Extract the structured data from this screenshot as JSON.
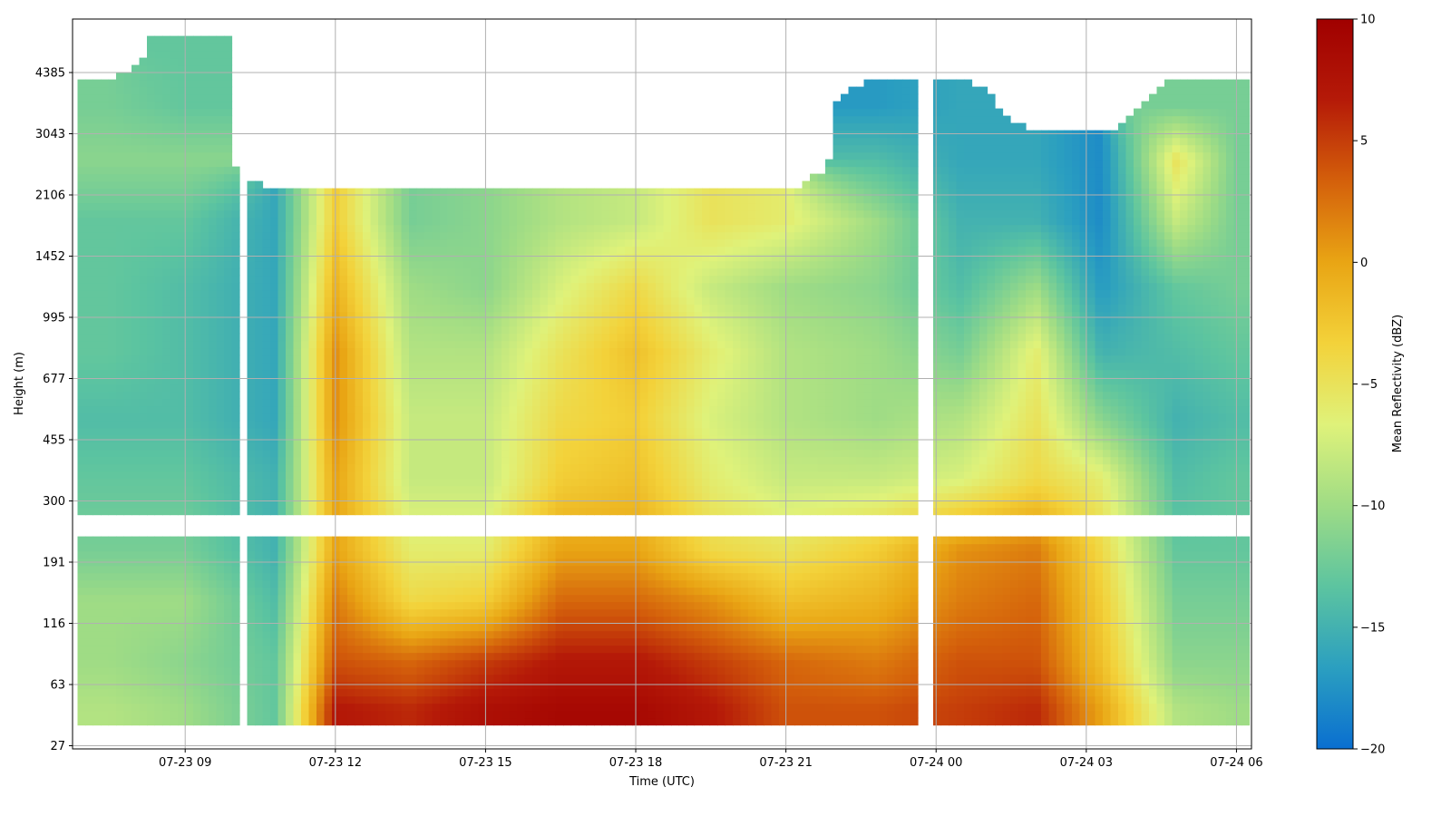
{
  "chart_data": {
    "type": "heatmap",
    "title": "",
    "xlabel": "Time (UTC)",
    "ylabel": "Height (m)",
    "x_ticks": [
      "07-23 09",
      "07-23 12",
      "07-23 15",
      "07-23 18",
      "07-23 21",
      "07-24 00",
      "07-24 03",
      "07-24 06"
    ],
    "x_tick_hours": [
      9,
      12,
      15,
      18,
      21,
      24,
      27,
      30
    ],
    "xlim_hours": [
      6.75,
      30.3
    ],
    "y_ticks": [
      "27",
      "63",
      "116",
      "191",
      "300",
      "455",
      "677",
      "995",
      "1452",
      "2106",
      "3043",
      "4385"
    ],
    "colorbar": {
      "label": "Mean Reflectivity (dBZ)",
      "range": [
        -20,
        10
      ],
      "ticks": [
        "10",
        "5",
        "0",
        "−5",
        "−10",
        "−15",
        "−20"
      ],
      "tick_values": [
        10,
        5,
        0,
        -5,
        -10,
        -15,
        -20
      ],
      "colormap": [
        "#0a6fd0",
        "#2b9fc0",
        "#5cc4a0",
        "#9fdc85",
        "#dff27a",
        "#f3d23a",
        "#e9a514",
        "#d4600b",
        "#b51a08",
        "#a00000"
      ]
    },
    "grid": true,
    "gaps": {
      "height_range_m": [
        232,
        270
      ],
      "time_hours": [
        [
          10.05,
          10.3
        ],
        [
          23.6,
          23.9
        ]
      ]
    },
    "approx_reflectivity_dbz": {
      "row_heights_m": [
        45,
        80,
        140,
        210,
        350,
        520,
        800,
        1200,
        1800,
        2600,
        3600,
        5000
      ],
      "col_hours": [
        7.5,
        9,
        10.8,
        12,
        13.5,
        15,
        16.5,
        18,
        19.5,
        21,
        22.8,
        24.5,
        26,
        27.3,
        28.8,
        30
      ],
      "values": [
        [
          -9,
          -10,
          -13,
          7,
          6,
          8,
          9,
          9,
          7,
          4,
          4,
          5,
          6,
          0,
          -9,
          -10
        ],
        [
          -10,
          -11,
          -13,
          4,
          3,
          5,
          7,
          7,
          5,
          3,
          2,
          4,
          4,
          -2,
          -11,
          -11
        ],
        [
          -10,
          -10,
          -14,
          2,
          -4,
          -3,
          3,
          3,
          1,
          -2,
          -1,
          2,
          3,
          -3,
          -12,
          -12
        ],
        [
          -12,
          -12,
          -15,
          0,
          -6,
          -6,
          0,
          0,
          -4,
          -5,
          -3,
          1,
          2,
          -4,
          -13,
          -13
        ],
        [
          -13,
          -13,
          -15,
          0,
          -8,
          -8,
          -3,
          -2,
          -6,
          -8,
          -8,
          -7,
          -4,
          -6,
          -14,
          -13
        ],
        [
          -14,
          -14,
          -16,
          1,
          -8,
          -8,
          -4,
          -3,
          -7,
          -9,
          -10,
          -9,
          -5,
          -11,
          -15,
          -14
        ],
        [
          -13,
          -14,
          -16,
          1,
          -9,
          -9,
          -5,
          -2,
          -6,
          -9,
          -10,
          -12,
          -6,
          -15,
          -14,
          -13
        ],
        [
          -13,
          -14,
          -16,
          -1,
          -10,
          -11,
          -7,
          -4,
          -8,
          -10,
          -11,
          -14,
          -10,
          -17,
          -13,
          -12
        ],
        [
          -13,
          -13,
          -16,
          -3,
          -12,
          -11,
          -9,
          -8,
          -5,
          -6,
          -10,
          -15,
          -15,
          -18,
          -8,
          -12
        ],
        [
          -11,
          -11,
          null,
          null,
          null,
          null,
          null,
          null,
          null,
          null,
          -14,
          -16,
          -16,
          -18,
          -5,
          -12
        ],
        [
          -12,
          -13,
          null,
          null,
          null,
          null,
          null,
          null,
          null,
          null,
          -17,
          -16,
          null,
          null,
          -12,
          -12
        ],
        [
          null,
          -13,
          null,
          null,
          null,
          null,
          null,
          null,
          null,
          null,
          null,
          null,
          null,
          null,
          null,
          null
        ]
      ]
    }
  }
}
